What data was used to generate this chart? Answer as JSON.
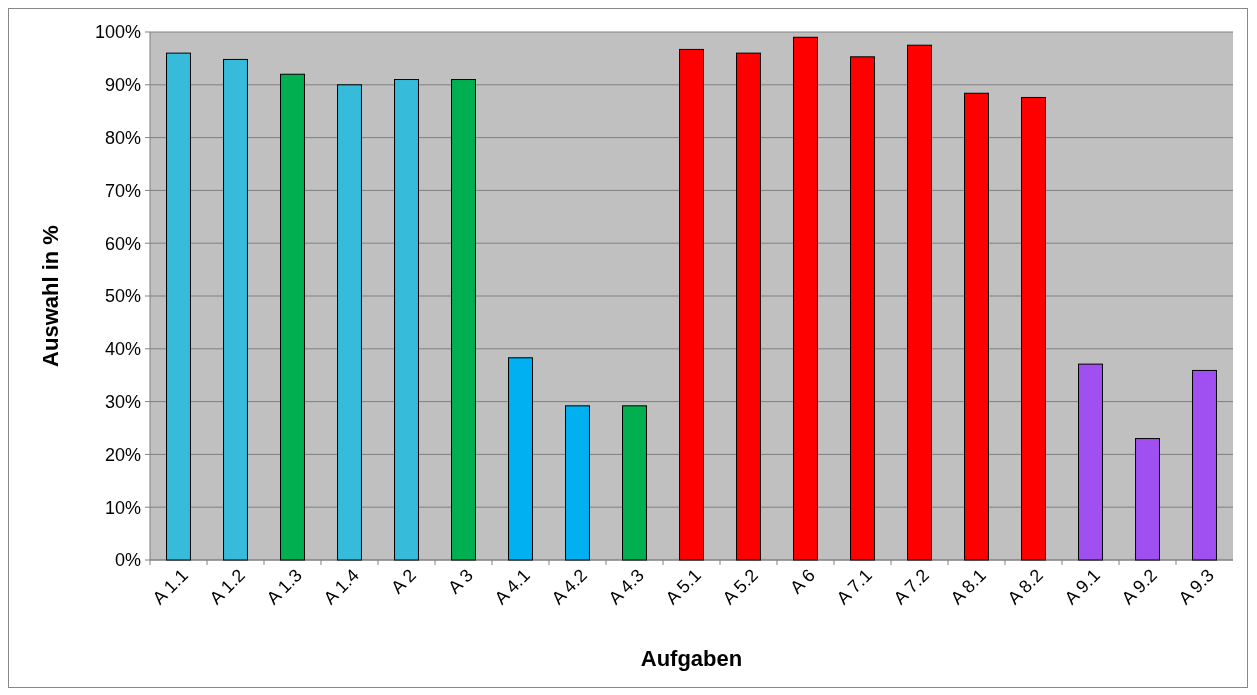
{
  "chart_data": {
    "type": "bar",
    "xlabel": "Aufgaben",
    "ylabel": "Auswahl in %",
    "categories": [
      "A 1.1",
      "A 1.2",
      "A 1.3",
      "A 1.4",
      "A 2",
      "A 3",
      "A 4.1",
      "A 4.2",
      "A 4.3",
      "A 5.1",
      "A 5.2",
      "A 6",
      "A 7.1",
      "A 7.2",
      "A 8.1",
      "A 8.2",
      "A 9.1",
      "A 9.2",
      "A 9.3"
    ],
    "values": [
      96,
      94.8,
      92,
      90,
      91,
      91,
      38.3,
      29.2,
      29.2,
      96.7,
      96,
      99,
      95.3,
      97.5,
      88.4,
      87.6,
      37.1,
      23,
      35.9
    ],
    "colors": [
      "#37bbdb",
      "#37bbdb",
      "#00b050",
      "#37bbdb",
      "#37bbdb",
      "#00b050",
      "#00b0f0",
      "#00b0f0",
      "#00b050",
      "#ff0000",
      "#ff0000",
      "#ff0000",
      "#ff0000",
      "#ff0000",
      "#ff0000",
      "#ff0000",
      "#a050f0",
      "#a050f0",
      "#a050f0"
    ],
    "ylim": [
      0,
      100
    ],
    "yticks": [
      {
        "value": 0,
        "label": "0%"
      },
      {
        "value": 10,
        "label": "10%"
      },
      {
        "value": 20,
        "label": "20%"
      },
      {
        "value": 30,
        "label": "30%"
      },
      {
        "value": 40,
        "label": "40%"
      },
      {
        "value": 50,
        "label": "50%"
      },
      {
        "value": 60,
        "label": "60%"
      },
      {
        "value": 70,
        "label": "70%"
      },
      {
        "value": 80,
        "label": "80%"
      },
      {
        "value": 90,
        "label": "90%"
      },
      {
        "value": 100,
        "label": "100%"
      }
    ],
    "grid": "y"
  }
}
